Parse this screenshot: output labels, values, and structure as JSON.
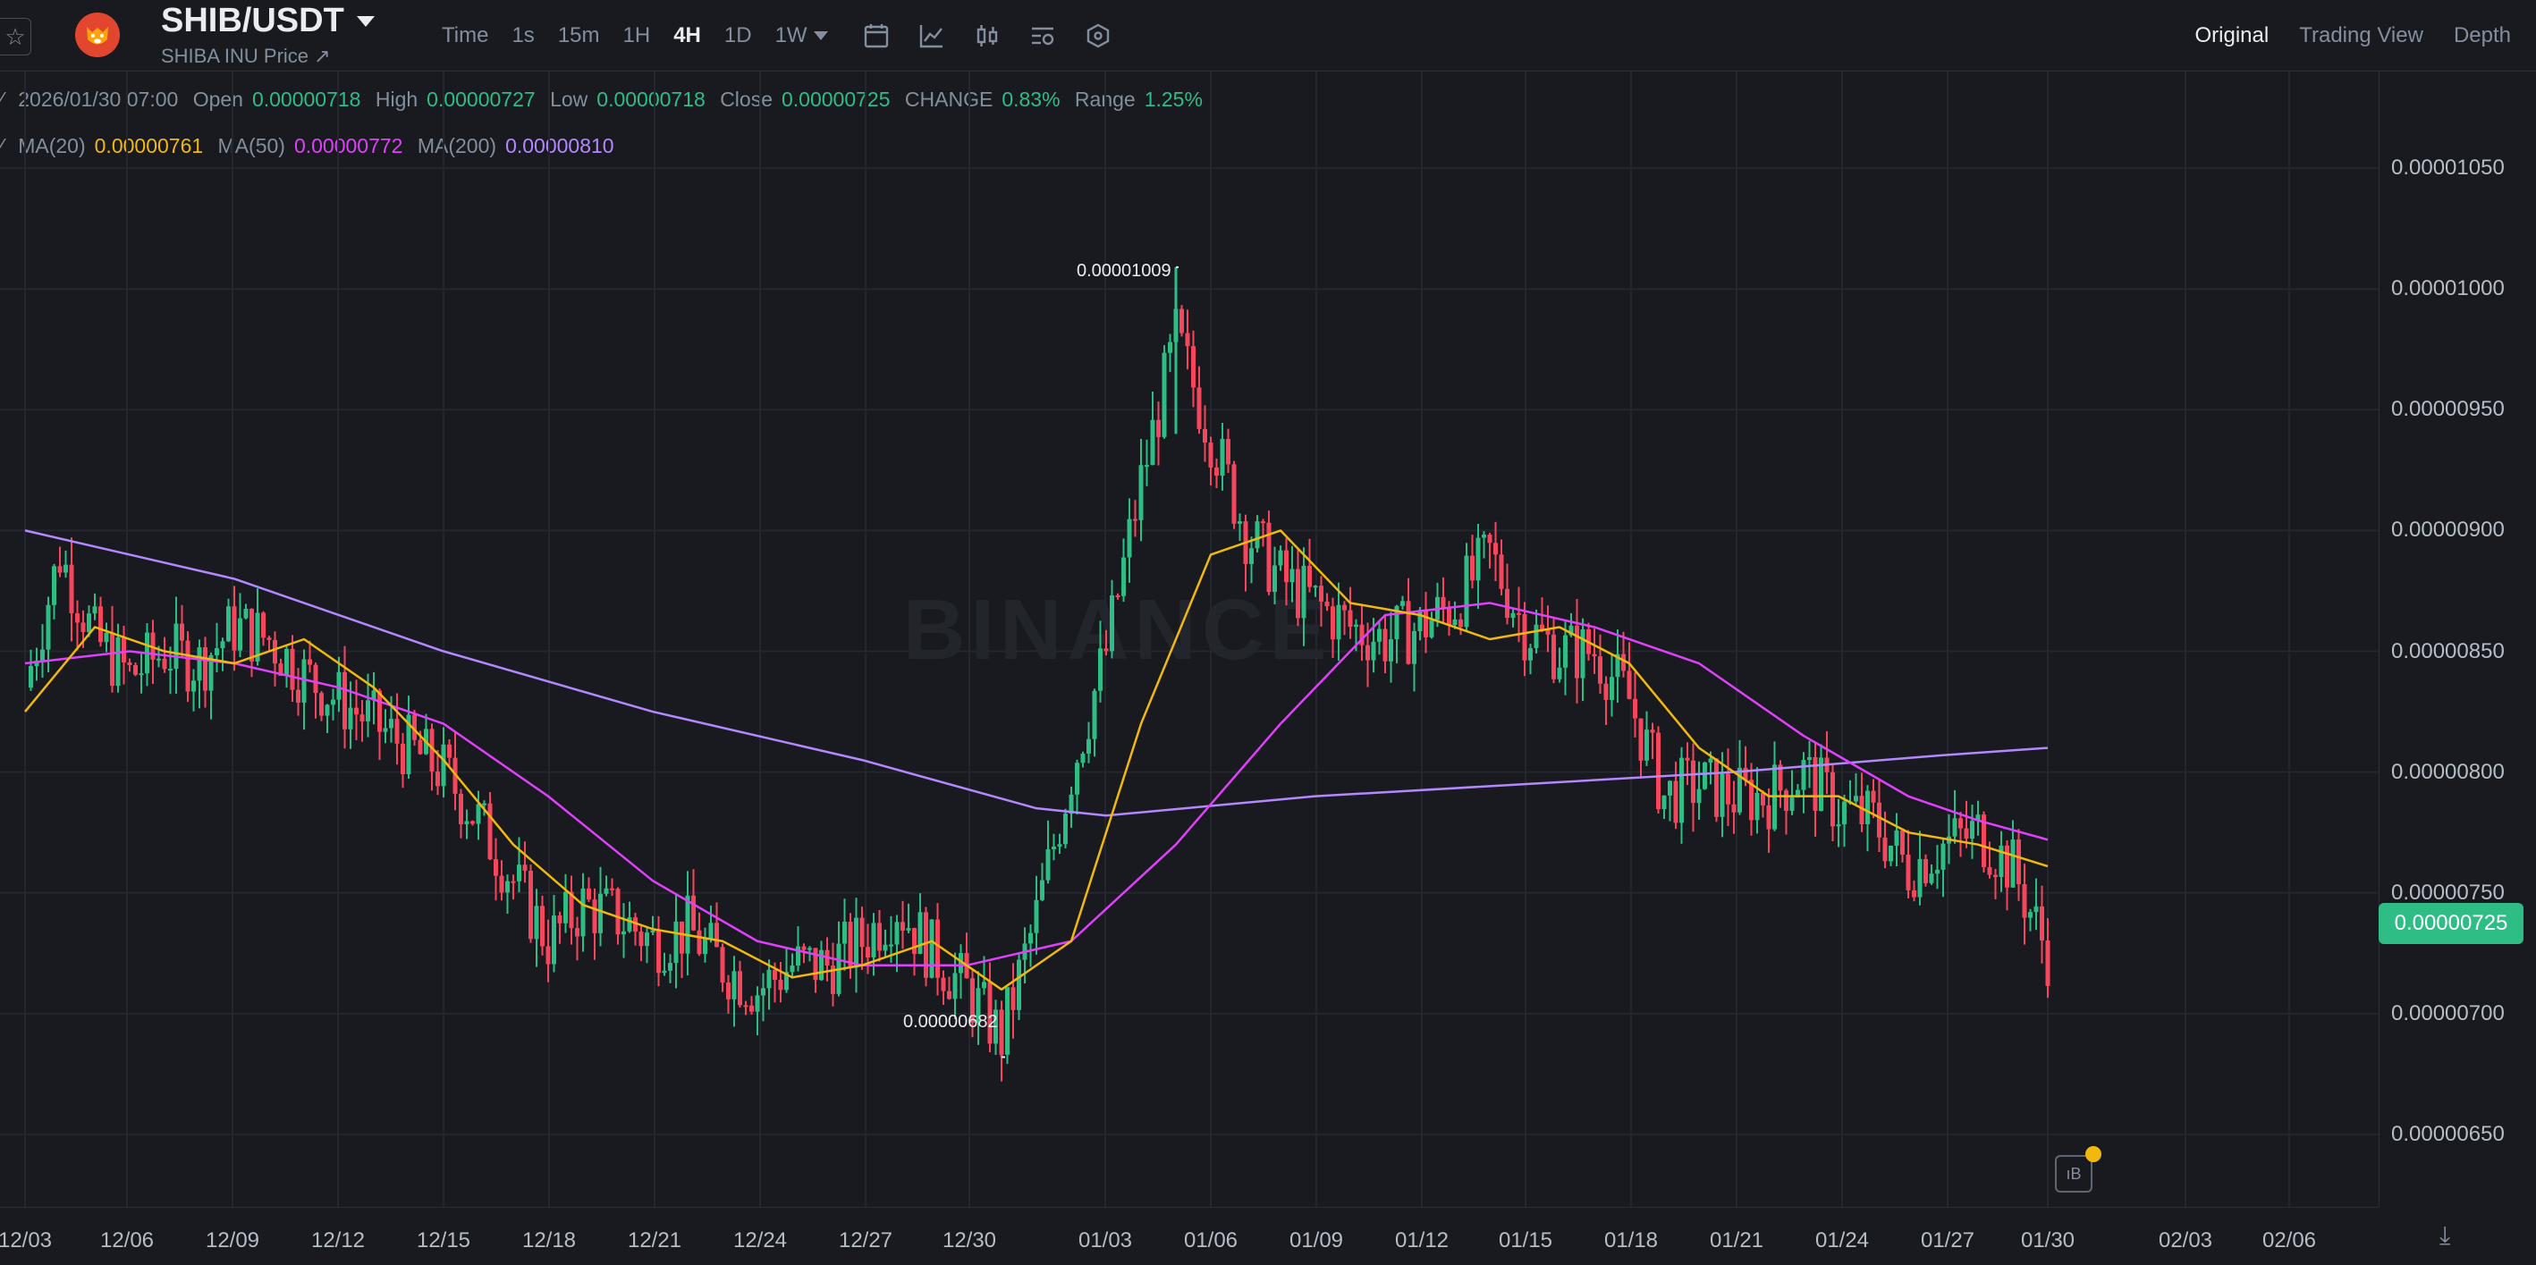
{
  "header": {
    "symbol": "SHIB/USDT",
    "subtitle": "SHIBA INU Price ↗",
    "intervals": [
      "Time",
      "1s",
      "15m",
      "1H",
      "4H",
      "1D",
      "1W"
    ],
    "active_interval": "4H",
    "views": [
      "Original",
      "Trading View",
      "Depth"
    ],
    "active_view": "Original"
  },
  "ohlc": {
    "datetime": "2026/01/30 07:00",
    "open_label": "Open",
    "open": "0.00000718",
    "high_label": "High",
    "high": "0.00000727",
    "low_label": "Low",
    "low": "0.00000718",
    "close_label": "Close",
    "close": "0.00000725",
    "change_label": "CHANGE",
    "change": "0.83%",
    "range_label": "Range",
    "range": "1.25%"
  },
  "ma": {
    "ma20_label": "MA(20)",
    "ma20": "0.00000761",
    "ma50_label": "MA(50)",
    "ma50": "0.00000772",
    "ma200_label": "MA(200)",
    "ma200": "0.00000810"
  },
  "markers": {
    "high": "0.00001009",
    "low": "0.00000682"
  },
  "current_price": "0.00000725",
  "watermark": "BINANCE",
  "colors": {
    "up": "#2ebd85",
    "down": "#f6465d",
    "ma20": "#f0b90b",
    "ma50": "#e040fb",
    "ma200": "#b388ff",
    "background": "#181a20"
  },
  "chart_data": {
    "type": "candlestick",
    "y_axis_ticks": [
      "0.00001050",
      "0.00001000",
      "0.00000950",
      "0.00000900",
      "0.00000850",
      "0.00000800",
      "0.00000750",
      "0.00000700",
      "0.00000650"
    ],
    "x_axis_ticks": [
      "12/03",
      "12/06",
      "12/09",
      "12/12",
      "12/15",
      "12/18",
      "12/21",
      "12/24",
      "12/27",
      "12/30",
      "01/03",
      "01/06",
      "01/09",
      "01/12",
      "01/15",
      "01/18",
      "01/21",
      "01/24",
      "01/27",
      "01/30",
      "02/03",
      "02/06"
    ],
    "ylim": [
      6.2e-06,
      1.09e-05
    ],
    "close_path": [
      [
        "12/03",
        8.35
      ],
      [
        "12/04",
        8.9
      ],
      [
        "12/05",
        8.55
      ],
      [
        "12/06",
        8.4
      ],
      [
        "12/07",
        8.5
      ],
      [
        "12/08",
        8.45
      ],
      [
        "12/09",
        8.6
      ],
      [
        "12/10",
        8.55
      ],
      [
        "12/11",
        8.4
      ],
      [
        "12/12",
        8.3
      ],
      [
        "12/13",
        8.2
      ],
      [
        "12/14",
        8.1
      ],
      [
        "12/15",
        8.0
      ],
      [
        "12/16",
        7.8
      ],
      [
        "12/17",
        7.55
      ],
      [
        "12/18",
        7.3
      ],
      [
        "12/19",
        7.45
      ],
      [
        "12/20",
        7.4
      ],
      [
        "12/21",
        7.3
      ],
      [
        "12/22",
        7.35
      ],
      [
        "12/23",
        7.2
      ],
      [
        "12/24",
        7.1
      ],
      [
        "12/25",
        7.2
      ],
      [
        "12/26",
        7.2
      ],
      [
        "12/27",
        7.3
      ],
      [
        "12/28",
        7.45
      ],
      [
        "12/29",
        7.25
      ],
      [
        "12/30",
        7.1
      ],
      [
        "12/31",
        6.9
      ],
      [
        "01/01",
        7.4
      ],
      [
        "01/02",
        8.0
      ],
      [
        "01/03",
        8.5
      ],
      [
        "01/04",
        9.2
      ],
      [
        "01/05",
        9.8
      ],
      [
        "01/06",
        9.4
      ],
      [
        "01/07",
        9.0
      ],
      [
        "01/08",
        8.8
      ],
      [
        "01/09",
        8.7
      ],
      [
        "01/10",
        8.6
      ],
      [
        "01/11",
        8.55
      ],
      [
        "01/12",
        8.6
      ],
      [
        "01/13",
        8.7
      ],
      [
        "01/14",
        8.9
      ],
      [
        "01/15",
        8.6
      ],
      [
        "01/16",
        8.5
      ],
      [
        "01/17",
        8.5
      ],
      [
        "01/18",
        8.3
      ],
      [
        "01/19",
        7.9
      ],
      [
        "01/20",
        7.95
      ],
      [
        "01/21",
        7.9
      ],
      [
        "01/22",
        7.9
      ],
      [
        "01/23",
        8.0
      ],
      [
        "01/24",
        7.85
      ],
      [
        "01/25",
        7.8
      ],
      [
        "01/26",
        7.6
      ],
      [
        "01/27",
        7.7
      ],
      [
        "01/28",
        7.75
      ],
      [
        "01/29",
        7.6
      ],
      [
        "01/30",
        7.25
      ]
    ],
    "ma200_path": [
      [
        "12/03",
        9.0
      ],
      [
        "12/09",
        8.8
      ],
      [
        "12/15",
        8.5
      ],
      [
        "12/21",
        8.25
      ],
      [
        "12/27",
        8.05
      ],
      [
        "01/01",
        7.85
      ],
      [
        "01/03",
        7.82
      ],
      [
        "01/09",
        7.9
      ],
      [
        "01/15",
        7.95
      ],
      [
        "01/21",
        8.0
      ],
      [
        "01/27",
        8.07
      ],
      [
        "01/30",
        8.1
      ]
    ],
    "ma50_path": [
      [
        "12/03",
        8.45
      ],
      [
        "12/06",
        8.5
      ],
      [
        "12/09",
        8.45
      ],
      [
        "12/12",
        8.35
      ],
      [
        "12/15",
        8.2
      ],
      [
        "12/18",
        7.9
      ],
      [
        "12/21",
        7.55
      ],
      [
        "12/24",
        7.3
      ],
      [
        "12/27",
        7.2
      ],
      [
        "12/30",
        7.2
      ],
      [
        "01/02",
        7.3
      ],
      [
        "01/05",
        7.7
      ],
      [
        "01/08",
        8.2
      ],
      [
        "01/11",
        8.65
      ],
      [
        "01/14",
        8.7
      ],
      [
        "01/17",
        8.6
      ],
      [
        "01/20",
        8.45
      ],
      [
        "01/23",
        8.15
      ],
      [
        "01/26",
        7.9
      ],
      [
        "01/28",
        7.8
      ],
      [
        "01/30",
        7.72
      ]
    ],
    "ma20_path": [
      [
        "12/03",
        8.25
      ],
      [
        "12/05",
        8.6
      ],
      [
        "12/07",
        8.5
      ],
      [
        "12/09",
        8.45
      ],
      [
        "12/11",
        8.55
      ],
      [
        "12/13",
        8.35
      ],
      [
        "12/15",
        8.05
      ],
      [
        "12/17",
        7.7
      ],
      [
        "12/19",
        7.45
      ],
      [
        "12/21",
        7.35
      ],
      [
        "12/23",
        7.3
      ],
      [
        "12/25",
        7.15
      ],
      [
        "12/27",
        7.2
      ],
      [
        "12/29",
        7.3
      ],
      [
        "12/31",
        7.1
      ],
      [
        "01/02",
        7.3
      ],
      [
        "01/04",
        8.2
      ],
      [
        "01/06",
        8.9
      ],
      [
        "01/08",
        9.0
      ],
      [
        "01/10",
        8.7
      ],
      [
        "01/12",
        8.65
      ],
      [
        "01/14",
        8.55
      ],
      [
        "01/16",
        8.6
      ],
      [
        "01/18",
        8.45
      ],
      [
        "01/20",
        8.1
      ],
      [
        "01/22",
        7.9
      ],
      [
        "01/24",
        7.9
      ],
      [
        "01/26",
        7.75
      ],
      [
        "01/28",
        7.7
      ],
      [
        "01/30",
        7.61
      ]
    ]
  }
}
